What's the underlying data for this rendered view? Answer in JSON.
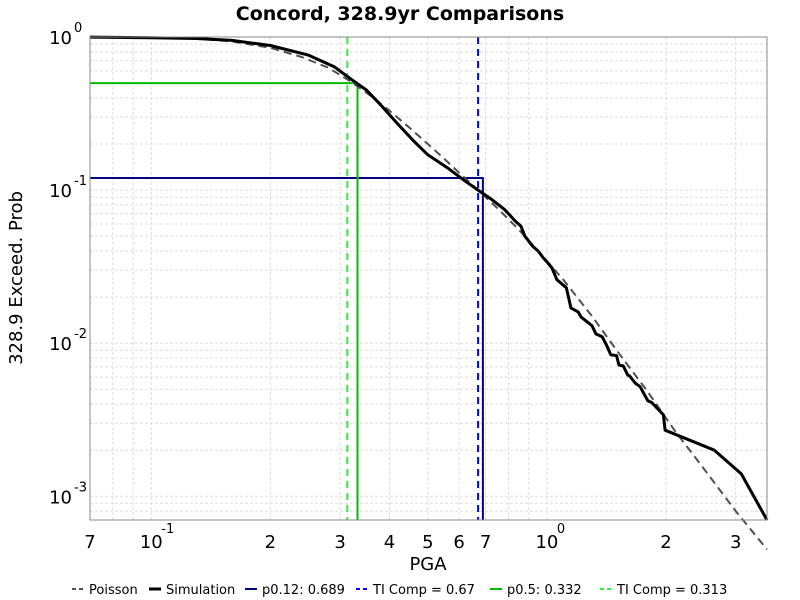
{
  "chart_data": {
    "type": "line",
    "title": "Concord, 328.9yr Comparisons",
    "xlabel": "PGA",
    "ylabel": "328.9 Exceed. Prob",
    "xscale": "log",
    "yscale": "log",
    "xlim": [
      0.07,
      3.6
    ],
    "ylim": [
      0.0007,
      1.0
    ],
    "grid": true,
    "legend_position": "bottom",
    "x_tick_labels": [
      {
        "value": 0.07,
        "base": "7",
        "exp": ""
      },
      {
        "value": 0.1,
        "base": "10",
        "exp": "-1"
      },
      {
        "value": 0.2,
        "base": "2",
        "exp": ""
      },
      {
        "value": 0.3,
        "base": "3",
        "exp": ""
      },
      {
        "value": 0.4,
        "base": "4",
        "exp": ""
      },
      {
        "value": 0.5,
        "base": "5",
        "exp": ""
      },
      {
        "value": 0.6,
        "base": "6",
        "exp": ""
      },
      {
        "value": 0.7,
        "base": "7",
        "exp": ""
      },
      {
        "value": 1.0,
        "base": "10",
        "exp": "0"
      },
      {
        "value": 2.0,
        "base": "2",
        "exp": ""
      },
      {
        "value": 3.0,
        "base": "3",
        "exp": ""
      }
    ],
    "y_tick_labels": [
      {
        "value": 1.0,
        "base": "10",
        "exp": "0"
      },
      {
        "value": 0.1,
        "base": "10",
        "exp": "-1"
      },
      {
        "value": 0.01,
        "base": "10",
        "exp": "-2"
      },
      {
        "value": 0.001,
        "base": "10",
        "exp": "-3"
      }
    ],
    "series": [
      {
        "name": "Poisson",
        "color": "#505050",
        "dash": "dashed",
        "x": [
          0.07,
          0.1,
          0.13,
          0.16,
          0.2,
          0.24,
          0.28,
          0.32,
          0.36,
          0.4,
          0.45,
          0.5,
          0.55,
          0.6,
          0.67,
          0.75,
          0.85,
          0.95,
          1.1,
          1.3,
          1.5,
          1.8,
          2.1,
          2.5,
          3.0,
          3.6
        ],
        "y": [
          0.998,
          0.99,
          0.975,
          0.935,
          0.85,
          0.74,
          0.63,
          0.51,
          0.41,
          0.33,
          0.255,
          0.2,
          0.16,
          0.13,
          0.1,
          0.076,
          0.055,
          0.04,
          0.026,
          0.015,
          0.009,
          0.0048,
          0.0027,
          0.0015,
          0.0008,
          0.00045
        ]
      },
      {
        "name": "Simulation",
        "color": "#000000",
        "dash": "solid",
        "x": [
          0.07,
          0.1,
          0.13,
          0.16,
          0.2,
          0.25,
          0.29,
          0.32,
          0.35,
          0.38,
          0.42,
          0.46,
          0.5,
          0.56,
          0.62,
          0.67,
          0.72,
          0.78,
          0.8,
          0.83,
          0.86,
          0.88,
          0.92,
          0.95,
          0.98,
          1.0,
          1.03,
          1.06,
          1.12,
          1.15,
          1.2,
          1.22,
          1.3,
          1.33,
          1.38,
          1.42,
          1.45,
          1.5,
          1.52,
          1.56,
          1.6,
          1.62,
          1.67,
          1.72,
          1.8,
          1.84,
          1.97,
          1.99,
          2.65,
          3.1,
          3.6
        ],
        "y": [
          0.998,
          0.99,
          0.978,
          0.95,
          0.88,
          0.76,
          0.64,
          0.53,
          0.45,
          0.36,
          0.27,
          0.21,
          0.17,
          0.14,
          0.115,
          0.1,
          0.088,
          0.075,
          0.07,
          0.063,
          0.058,
          0.05,
          0.043,
          0.04,
          0.036,
          0.034,
          0.031,
          0.026,
          0.023,
          0.017,
          0.016,
          0.0148,
          0.013,
          0.0115,
          0.011,
          0.0095,
          0.0084,
          0.0083,
          0.0072,
          0.0071,
          0.0062,
          0.0061,
          0.0055,
          0.0052,
          0.0042,
          0.0041,
          0.0034,
          0.0027,
          0.002,
          0.0014,
          0.0007
        ]
      },
      {
        "name": "p0.12: 0.689",
        "color": "#000080",
        "dash": "solid",
        "x": [
          0.07,
          0.689,
          0.689
        ],
        "y": [
          0.12,
          0.12,
          0.0007
        ]
      },
      {
        "name": "TI Comp = 0.67",
        "color": "#0000ff",
        "dash": "dashed",
        "x": [
          0.67,
          0.67
        ],
        "y": [
          1.0,
          0.0007
        ]
      },
      {
        "name": "p0.5: 0.332",
        "color": "#00bb00",
        "dash": "solid",
        "x": [
          0.07,
          0.332,
          0.332
        ],
        "y": [
          0.5,
          0.5,
          0.0007
        ]
      },
      {
        "name": "TI Comp = 0.313",
        "color": "#33ee33",
        "dash": "dashed",
        "x": [
          0.313,
          0.313
        ],
        "y": [
          1.0,
          0.0007
        ]
      }
    ]
  }
}
